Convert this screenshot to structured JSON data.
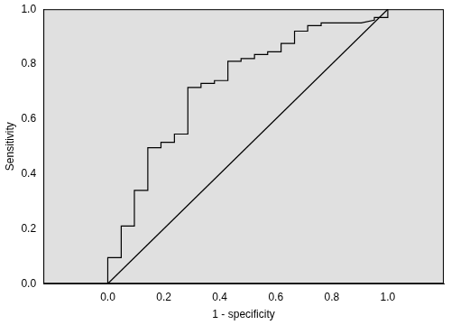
{
  "chart_data": {
    "type": "line",
    "x_label": "1 - specificity",
    "y_label": "Sensitivity",
    "xlim": [
      -0.23,
      1.2
    ],
    "ylim": [
      0,
      1
    ],
    "xticks": [
      {
        "value": 0,
        "label": "0.0"
      },
      {
        "value": 0.2,
        "label": "0.2"
      },
      {
        "value": 0.4,
        "label": "0.4"
      },
      {
        "value": 0.6,
        "label": "0.6"
      },
      {
        "value": 0.8,
        "label": "0.8"
      },
      {
        "value": 1,
        "label": "1.0"
      }
    ],
    "yticks": [
      {
        "value": 0,
        "label": "0.0"
      },
      {
        "value": 0.2,
        "label": "0.2"
      },
      {
        "value": 0.4,
        "label": "0.4"
      },
      {
        "value": 0.6,
        "label": "0.6"
      },
      {
        "value": 0.8,
        "label": "0.8"
      },
      {
        "value": 1,
        "label": "1.0"
      }
    ],
    "grid": false,
    "series": [
      {
        "color": "#000000",
        "x": [
          0,
          0,
          0.048,
          0.048,
          0.095,
          0.095,
          0.143,
          0.143,
          0.19,
          0.19,
          0.238,
          0.238,
          0.286,
          0.286,
          0.333,
          0.333,
          0.381,
          0.381,
          0.429,
          0.429,
          0.476,
          0.476,
          0.524,
          0.524,
          0.571,
          0.571,
          0.619,
          0.619,
          0.667,
          0.667,
          0.714,
          0.714,
          0.762,
          0.762,
          0.905,
          0.952,
          0.952,
          1,
          1
        ],
        "values": [
          0,
          0.095,
          0.095,
          0.21,
          0.21,
          0.34,
          0.34,
          0.495,
          0.495,
          0.515,
          0.515,
          0.545,
          0.545,
          0.715,
          0.715,
          0.73,
          0.73,
          0.74,
          0.74,
          0.81,
          0.81,
          0.82,
          0.82,
          0.835,
          0.835,
          0.845,
          0.845,
          0.875,
          0.875,
          0.92,
          0.92,
          0.94,
          0.94,
          0.95,
          0.95,
          0.96,
          0.97,
          0.97,
          1
        ]
      },
      {
        "color": "#000000",
        "x": [
          0,
          1
        ],
        "values": [
          0,
          1
        ]
      }
    ]
  }
}
